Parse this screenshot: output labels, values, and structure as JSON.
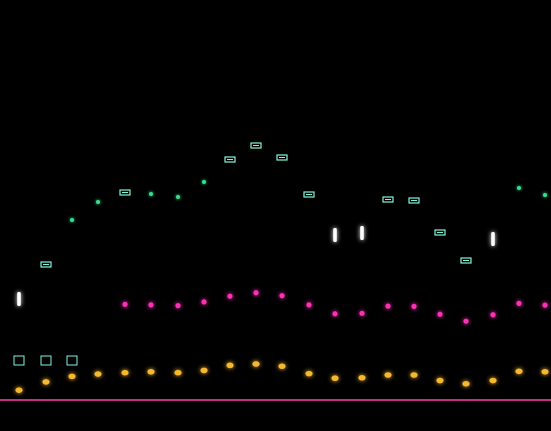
{
  "game": {
    "view": "rhythm-lane-field",
    "lane_count": 21,
    "judgement_line_color": "#ff3fb0",
    "background_color": "#000000"
  },
  "colors": {
    "green": "#33e08a",
    "magenta": "#ff2fb8",
    "white": "#ffffff",
    "gold": "#f5b82e",
    "cyan": "#7ff5dd",
    "dark_green": "#1a7a4a"
  },
  "lanes": [
    {
      "color_top": "white",
      "color_bottom": "green",
      "cap": "white-glow"
    },
    {
      "color_top": "white",
      "color_bottom": "green",
      "cap": "bracket"
    },
    {
      "color_top": "green",
      "color_bottom": "green",
      "cap": "dot"
    },
    {
      "color_top": "green",
      "color_bottom": "green",
      "cap": "dot"
    },
    {
      "color_top": "green",
      "color_bottom": "magenta",
      "cap": "bracket"
    },
    {
      "color_top": "green",
      "color_bottom": "magenta",
      "cap": "dot"
    },
    {
      "color_top": "green",
      "color_bottom": "magenta",
      "cap": "dot"
    },
    {
      "color_top": "green",
      "color_bottom": "magenta",
      "cap": "dot"
    },
    {
      "color_top": "green",
      "color_bottom": "magenta",
      "cap": "bracket"
    },
    {
      "color_top": "green",
      "color_bottom": "magenta",
      "cap": "bracket"
    },
    {
      "color_top": "green",
      "color_bottom": "magenta",
      "cap": "bracket"
    },
    {
      "color_top": "green",
      "color_bottom": "magenta",
      "cap": "bracket"
    },
    {
      "color_top": "white",
      "color_bottom": "magenta",
      "cap": "white-glow"
    },
    {
      "color_top": "white",
      "color_bottom": "magenta",
      "cap": "white-glow"
    },
    {
      "color_top": "green",
      "color_bottom": "magenta",
      "cap": "bracket"
    },
    {
      "color_top": "green",
      "color_bottom": "magenta",
      "cap": "bracket"
    },
    {
      "color_top": "green",
      "color_bottom": "magenta",
      "cap": "bracket"
    },
    {
      "color_top": "white",
      "color_bottom": "magenta",
      "cap": "bracket"
    },
    {
      "color_top": "white",
      "color_bottom": "magenta",
      "cap": "white-glow"
    },
    {
      "color_top": "green",
      "color_bottom": "magenta",
      "cap": "dot"
    },
    {
      "color_top": "green",
      "color_bottom": "magenta",
      "cap": "dot"
    }
  ],
  "note_level": [
    0.17,
    0.35,
    0.47,
    0.52,
    0.55,
    0.57,
    0.55,
    0.6,
    0.71,
    0.74,
    0.69,
    0.53,
    0.43,
    0.44,
    0.5,
    0.5,
    0.38,
    0.31,
    0.38,
    0.58,
    0.57
  ]
}
